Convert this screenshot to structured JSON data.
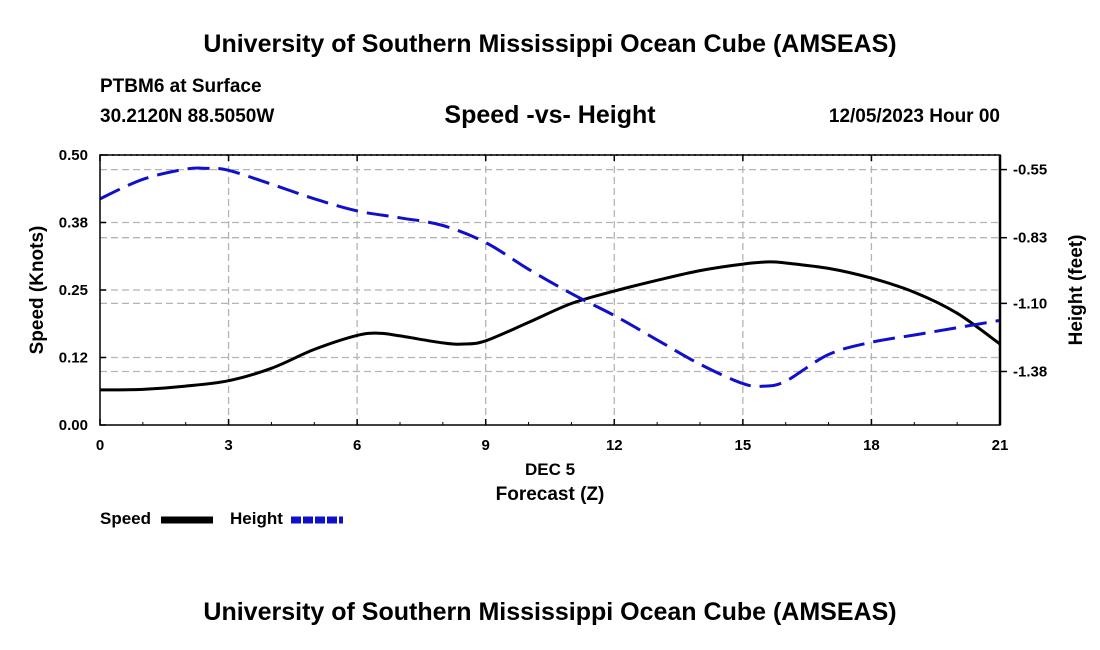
{
  "titles": {
    "main": "University of Southern Mississippi Ocean Cube (AMSEAS)",
    "bottom": "University of Southern Mississippi Ocean Cube (AMSEAS)",
    "station": "PTBM6 at Surface",
    "coords": "30.2120N  88.5050W",
    "subtitle": "Speed -vs- Height",
    "datetime": "12/05/2023 Hour 00"
  },
  "legend": {
    "speed": "Speed",
    "height": "Height"
  },
  "colors": {
    "speed": "#000000",
    "height": "#1010cc",
    "grid": "#b4b4b4"
  },
  "chart_data": {
    "type": "line",
    "title": "Speed -vs- Height",
    "xlabel": "Forecast (Z)",
    "xsublabel": "DEC 5",
    "ylabel": "Speed (Knots)",
    "y2label": "Height (feet)",
    "xlim": [
      0,
      21
    ],
    "ylim": [
      0,
      0.5
    ],
    "y2lim": [
      -1.6,
      -0.49
    ],
    "x_ticks": [
      0,
      3,
      6,
      9,
      12,
      15,
      18,
      21
    ],
    "x_tick_labels": [
      "0",
      "3",
      "6",
      "9",
      "12",
      "15",
      "18",
      "21"
    ],
    "y_ticks": [
      0,
      0.125,
      0.25,
      0.375,
      0.5
    ],
    "y_tick_labels": [
      "0.00",
      "0.12",
      "0.25",
      "0.38",
      "0.50"
    ],
    "y2_ticks": [
      -0.55,
      -0.83,
      -1.1,
      -1.38
    ],
    "y2_tick_labels": [
      "-0.55",
      "-0.83",
      "-1.10",
      "-1.38"
    ],
    "grid": true,
    "series": [
      {
        "name": "Speed",
        "axis": "left",
        "style": "solid",
        "x": [
          0,
          1,
          2,
          3,
          4,
          5,
          6,
          6.5,
          7,
          8,
          8.5,
          9,
          10,
          11,
          12,
          13,
          14,
          15,
          15.6,
          16,
          17,
          18,
          19,
          20,
          21
        ],
        "values": [
          0.065,
          0.066,
          0.072,
          0.082,
          0.105,
          0.14,
          0.166,
          0.17,
          0.165,
          0.152,
          0.15,
          0.156,
          0.19,
          0.225,
          0.248,
          0.268,
          0.286,
          0.298,
          0.302,
          0.3,
          0.29,
          0.272,
          0.246,
          0.207,
          0.15
        ]
      },
      {
        "name": "Height",
        "axis": "right",
        "style": "dashed",
        "x": [
          0,
          1,
          2,
          2.5,
          3,
          4,
          5,
          6,
          7,
          8,
          9,
          10,
          11,
          12,
          13,
          14,
          15,
          15.5,
          16,
          17,
          18,
          19,
          20,
          21
        ],
        "values": [
          -0.67,
          -0.59,
          -0.548,
          -0.545,
          -0.553,
          -0.61,
          -0.67,
          -0.72,
          -0.748,
          -0.78,
          -0.85,
          -0.96,
          -1.06,
          -1.15,
          -1.25,
          -1.35,
          -1.43,
          -1.44,
          -1.42,
          -1.31,
          -1.26,
          -1.23,
          -1.2,
          -1.17
        ]
      }
    ]
  }
}
